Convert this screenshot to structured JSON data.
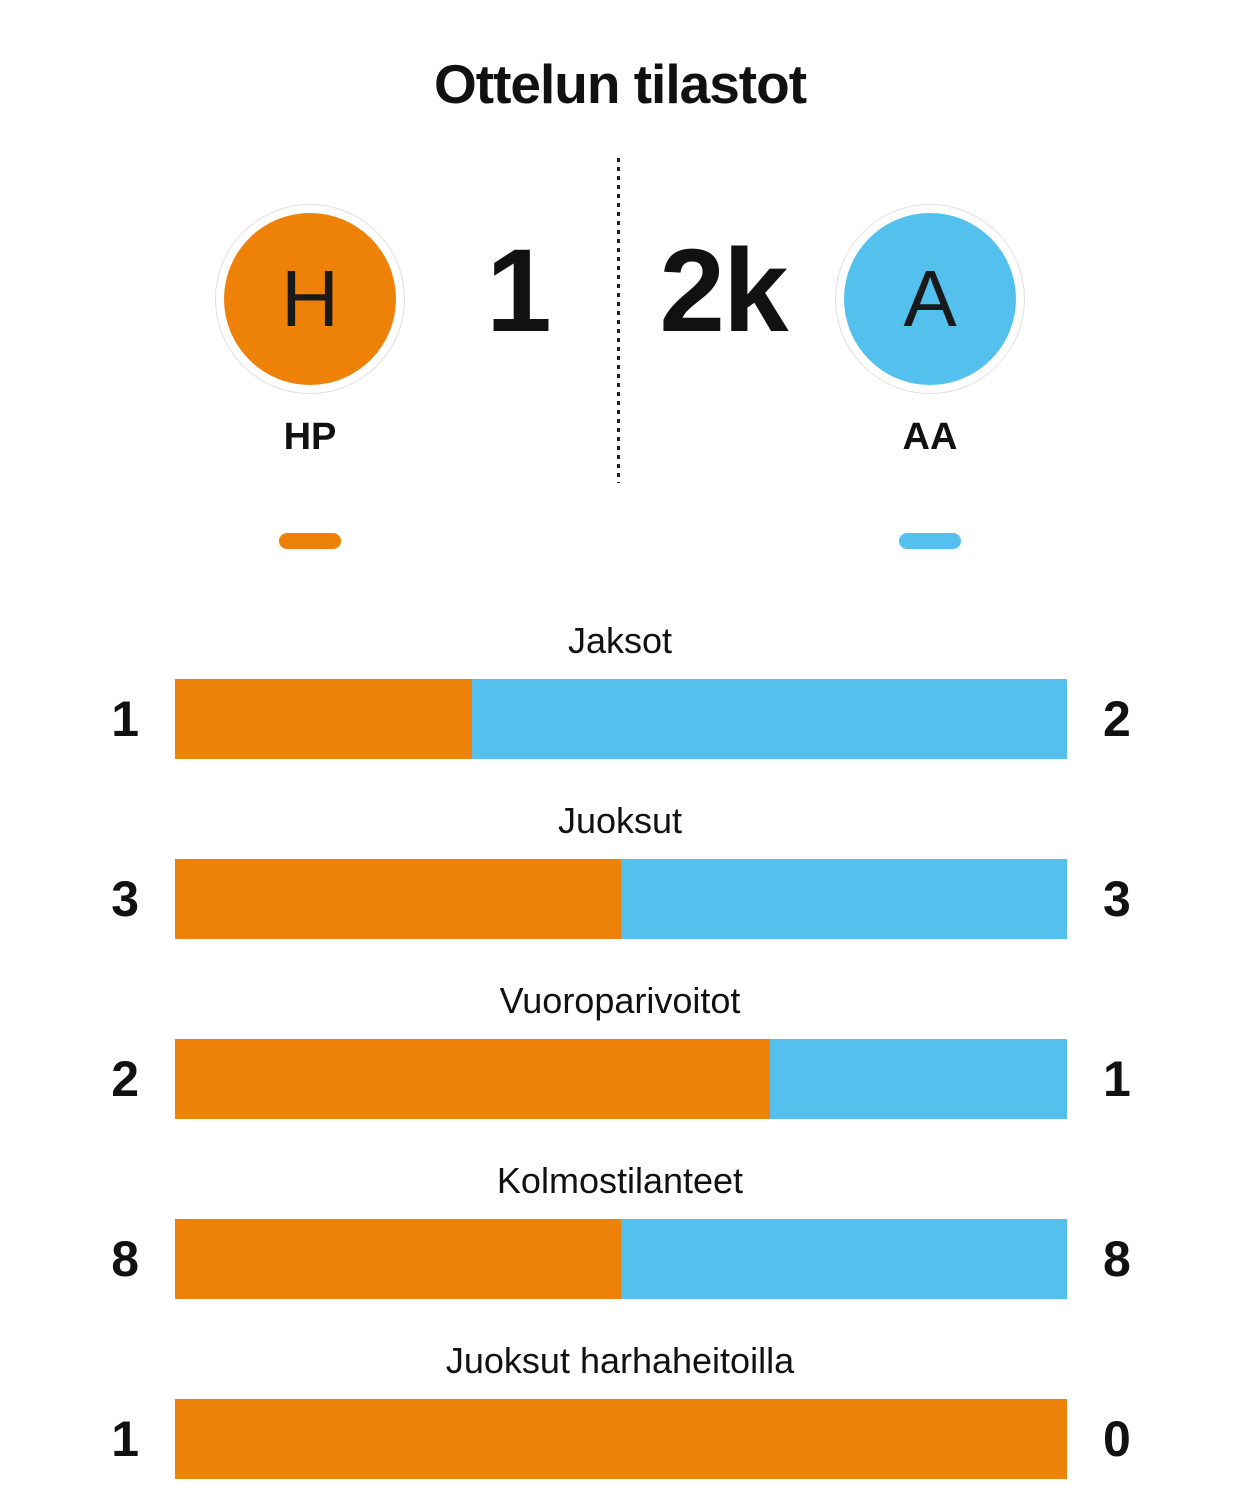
{
  "title": "Ottelun tilastot",
  "colors": {
    "home": "#ee8208",
    "away": "#53c0ee",
    "text": "#111111",
    "ring": "#e0e0e0"
  },
  "scoreboard": {
    "home_team": {
      "initial": "H",
      "abbr": "HP"
    },
    "away_team": {
      "initial": "A",
      "abbr": "AA"
    },
    "home_score": "1",
    "away_score": "2k"
  },
  "chart_data": {
    "type": "bar",
    "subtype": "horizontal-stacked-comparison",
    "title": "Ottelun tilastot",
    "categories": [
      "Jaksot",
      "Juoksut",
      "Vuoroparivoitot",
      "Kolmostilanteet",
      "Juoksut harhaheitoilla"
    ],
    "series": [
      {
        "name": "HP",
        "color": "#ee8208",
        "values": [
          1,
          3,
          2,
          8,
          1
        ]
      },
      {
        "name": "AA",
        "color": "#53c0ee",
        "values": [
          2,
          3,
          1,
          8,
          0
        ]
      }
    ],
    "legend_position": "top",
    "value_labels": "left-right-of-bars",
    "bar_fill_rule": "home / (home + away) of full width"
  }
}
